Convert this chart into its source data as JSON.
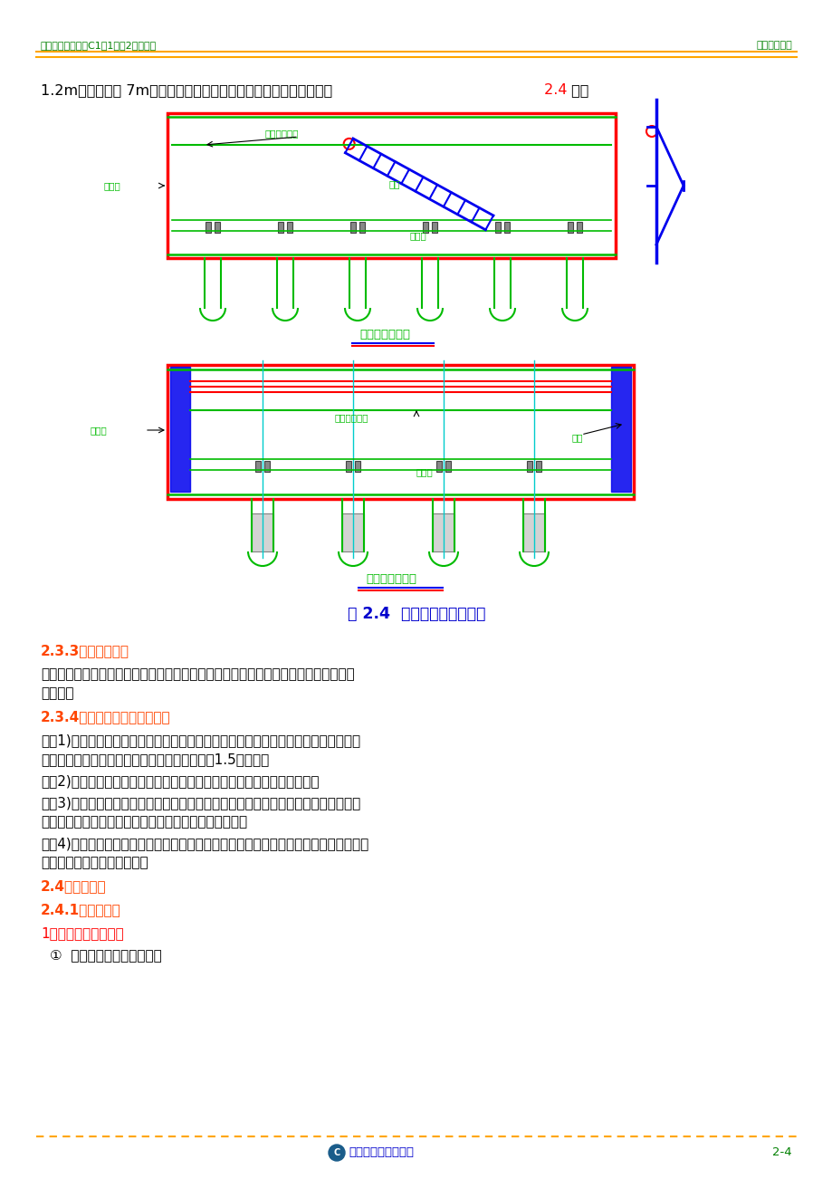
{
  "header_left": "苏通长江公路大桥C1标1井、2井级承台",
  "header_right": "施工组织设计",
  "header_text_color": "#008000",
  "footer_text": "中港第二航务工程局",
  "footer_page": "2-4",
  "footer_line_color": "#FFA500",
  "intro_text_black": "1.2m宽，总高度 7m的踏步斜楼梯，方便工作人员上下。其简图见图",
  "intro_num": " 2.4",
  "intro_num_color": "#FF0000",
  "intro_end": " 示：",
  "fig_caption": "图 2.4  吊箱壁人行通道简图",
  "fig_caption_color": "#0000CD",
  "top_label1": "钢吊箱",
  "top_label2": "吊箱钢管内撑",
  "top_label3": "斜梯",
  "top_label4": "封底砼",
  "top_caption": "吊箱棱梯侧面图",
  "bot_label1": "钢吊箱",
  "bot_label2": "吊箱钢管内撑",
  "bot_label3": "斜梯",
  "bot_label4": "封底砼",
  "bot_caption": "吊箱棱梯立面图",
  "section_233_title": "2.3.3、护筒的割除",
  "section_233_color": "#FF4500",
  "section_233_b1": "　　抽水、安装钢支撑同时，割除护筒，同时割除吊箱的拉杆，并逐步与护筒焊接，形",
  "section_233_b2": "成压杆。",
  "section_234_title": "2.3.4、桩头及封底混凝土处理",
  "section_234_color": "#FF4500",
  "section_234_b1a": "　　1)、桩基混凝土浇注完成并初凝后，先凿除护筒内部分高出设计标高的混凝土，为",
  "section_234_b1b": "确保桩基混凝土质量，凿除混凝土标高控制在－1.5米左右；",
  "section_234_b2": "　　2)、护筒割除后，在按设计标高控制采用风镐凿除桩顶多余的混凝土。",
  "section_234_b3a": "　　3)、桩头处理完毕，将封底砼顶面杂物清除，并按设计封底混凝土标高控制，采用",
  "section_234_b3b": "人工和风镐两种方法配合的方式凿除多余的封底混凝土。",
  "section_234_b4a": "　　4)、封底混凝土处理完毕，将封底砼顶面打扫干净。并将桩顶伸出钢筋调直，理顺，",
  "section_234_b4b": "然后绑扎喇叭口钢筋的箍筋。",
  "section_24_title": "2.4、模板工程",
  "section_24_color": "#FF4500",
  "section_241_title": "2.4.1、模板设计",
  "section_241_color": "#FF4500",
  "item1_text": "1）承台模板设计原则",
  "item1_color": "#FF0000",
  "item1_sub": "①  宜采用胶合板或钢模板。",
  "bg_color": "#FFFFFF",
  "text_color": "#000000",
  "draw_red": "#FF0000",
  "draw_green": "#00BB00",
  "draw_blue": "#0000EE",
  "draw_cyan": "#00CCCC",
  "draw_black": "#000000"
}
